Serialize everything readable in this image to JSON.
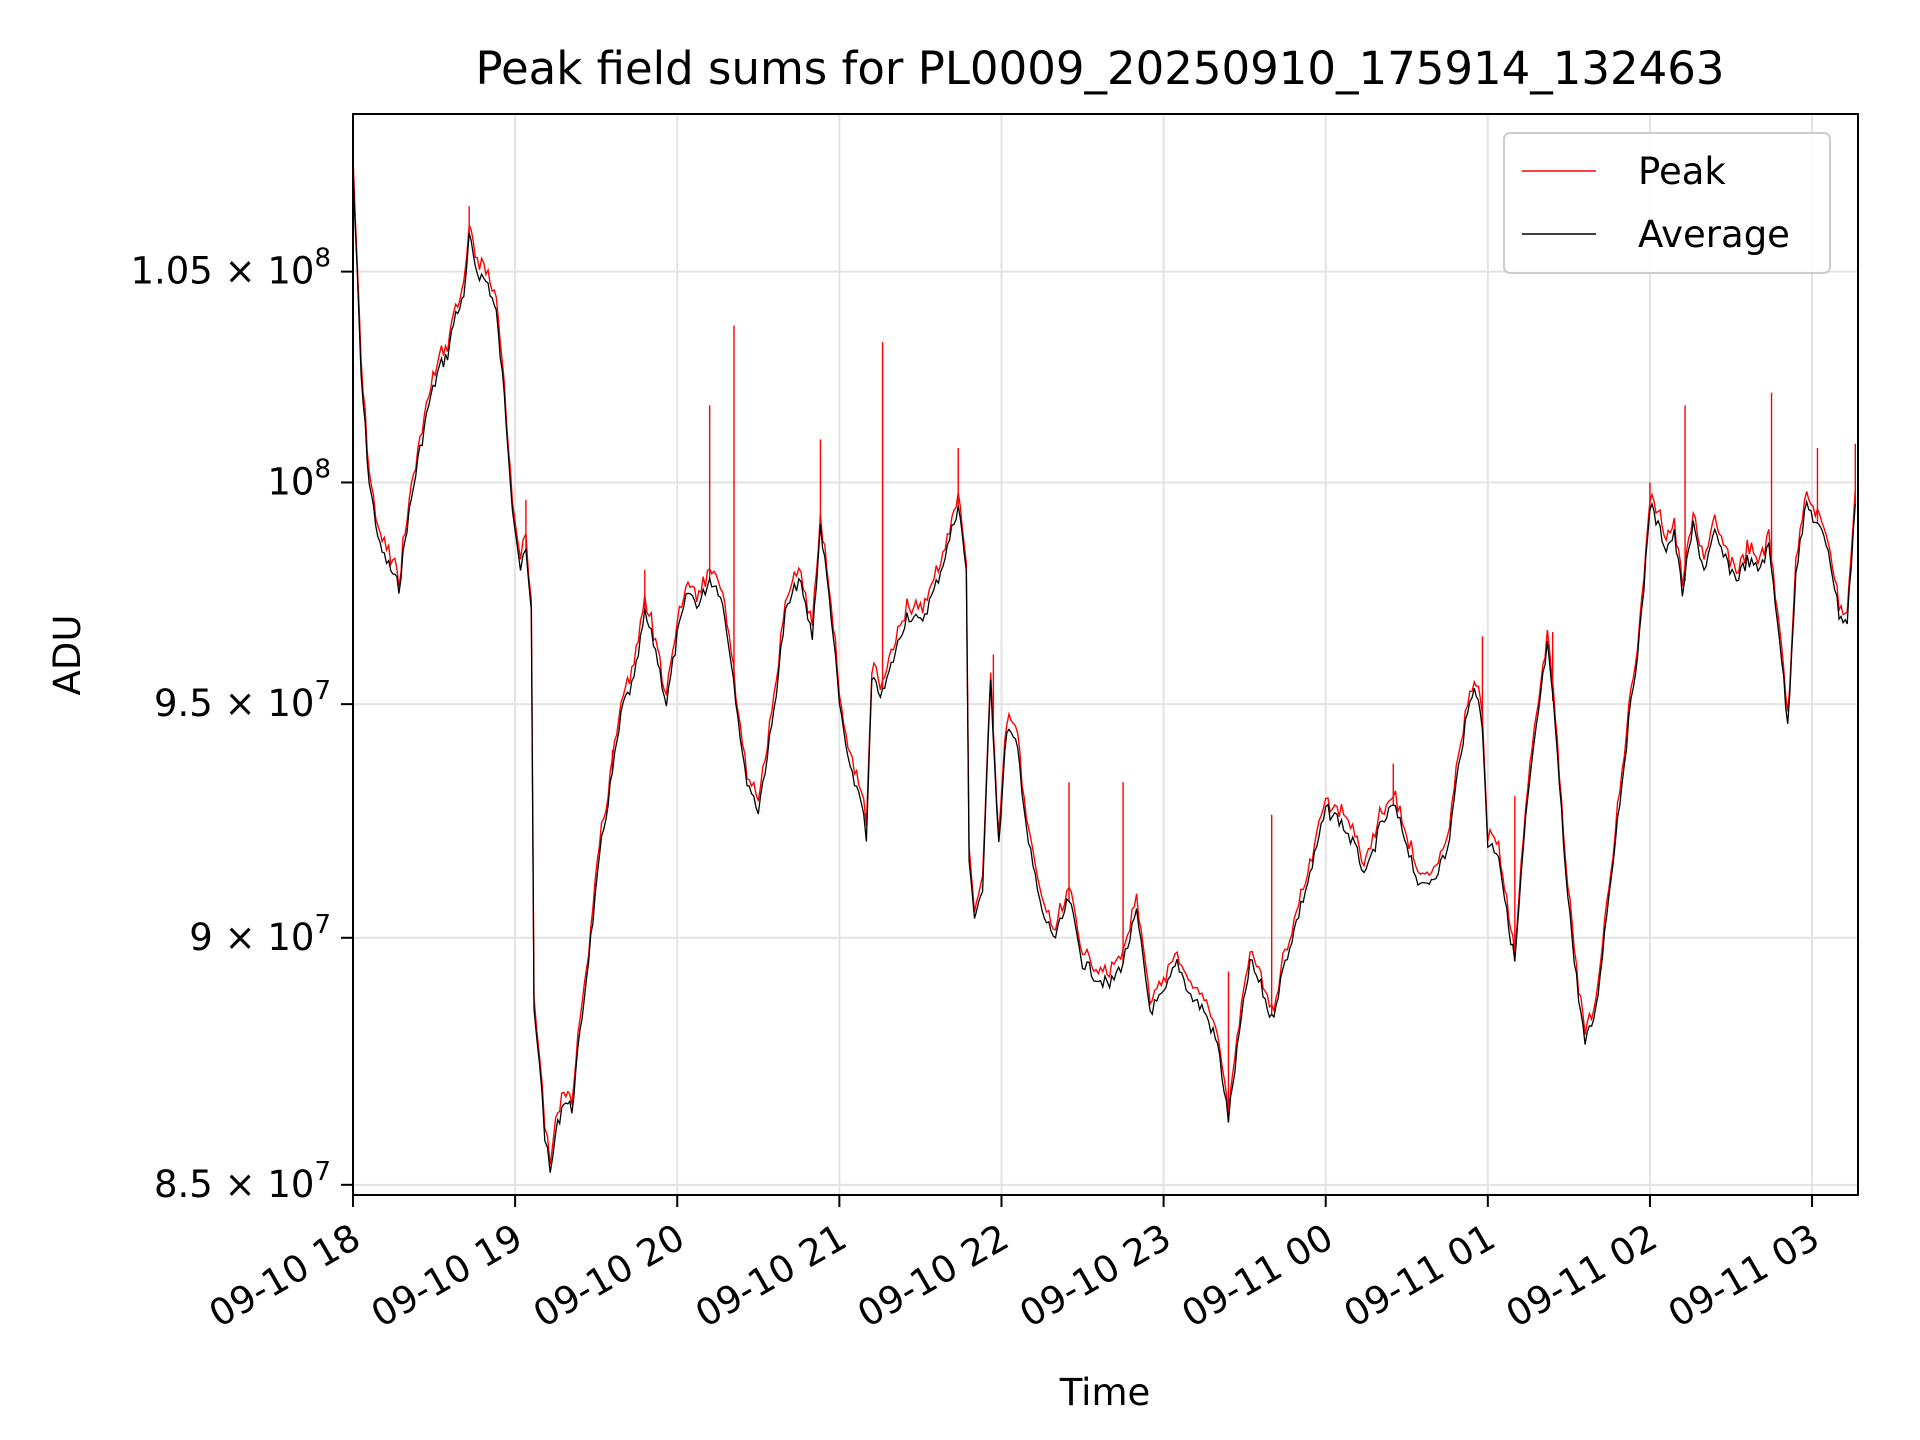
{
  "chart_data": {
    "type": "line",
    "title": "Peak field sums for PL0009_20250910_175914_132463",
    "xlabel": "Time",
    "ylabel": "ADU",
    "y_scale": "log",
    "grid": true,
    "legend_position": "top-right",
    "xlim": [
      "2025-09-10 18:00",
      "2025-09-11 03:17"
    ],
    "ylim": [
      84800000,
      108900000
    ],
    "x_ticks": [
      {
        "t": "2025-09-10 18:00",
        "label": "09-10 18"
      },
      {
        "t": "2025-09-10 19:00",
        "label": "09-10 19"
      },
      {
        "t": "2025-09-10 20:00",
        "label": "09-10 20"
      },
      {
        "t": "2025-09-10 21:00",
        "label": "09-10 21"
      },
      {
        "t": "2025-09-10 22:00",
        "label": "09-10 22"
      },
      {
        "t": "2025-09-10 23:00",
        "label": "09-10 23"
      },
      {
        "t": "2025-09-11 00:00",
        "label": "09-11 00"
      },
      {
        "t": "2025-09-11 01:00",
        "label": "09-11 01"
      },
      {
        "t": "2025-09-11 02:00",
        "label": "09-11 02"
      },
      {
        "t": "2025-09-11 03:00",
        "label": "09-11 03"
      }
    ],
    "y_ticks": [
      {
        "value": 85000000,
        "mantissa": "8.5",
        "exp": "7"
      },
      {
        "value": 90000000,
        "mantissa": "9",
        "exp": "7"
      },
      {
        "value": 95000000,
        "mantissa": "9.5",
        "exp": "7"
      },
      {
        "value": 100000000,
        "mantissa": "",
        "exp": "8"
      },
      {
        "value": 105000000,
        "mantissa": "1.05",
        "exp": "8"
      }
    ],
    "series": [
      {
        "name": "Average",
        "color": "#000000",
        "points": [
          [
            "2025-09-10 18:00",
            107500000
          ],
          [
            "2025-09-10 18:03",
            102500000
          ],
          [
            "2025-09-10 18:06",
            100000000
          ],
          [
            "2025-09-10 18:10",
            98500000
          ],
          [
            "2025-09-10 18:14",
            98000000
          ],
          [
            "2025-09-10 18:17",
            97600000
          ],
          [
            "2025-09-10 18:20",
            99000000
          ],
          [
            "2025-09-10 18:24",
            100500000
          ],
          [
            "2025-09-10 18:28",
            101800000
          ],
          [
            "2025-09-10 18:32",
            102700000
          ],
          [
            "2025-09-10 18:35",
            103000000
          ],
          [
            "2025-09-10 18:38",
            104000000
          ],
          [
            "2025-09-10 18:41",
            104300000
          ],
          [
            "2025-09-10 18:43",
            105800000
          ],
          [
            "2025-09-10 18:46",
            105000000
          ],
          [
            "2025-09-10 18:50",
            104700000
          ],
          [
            "2025-09-10 18:53",
            104000000
          ],
          [
            "2025-09-10 18:56",
            102000000
          ],
          [
            "2025-09-10 18:59",
            99500000
          ],
          [
            "2025-09-10 19:02",
            98000000
          ],
          [
            "2025-09-10 19:04",
            98400000
          ],
          [
            "2025-09-10 19:06",
            97000000
          ],
          [
            "2025-09-10 19:07",
            88500000
          ],
          [
            "2025-09-10 19:09",
            87500000
          ],
          [
            "2025-09-10 19:11",
            86000000
          ],
          [
            "2025-09-10 19:13",
            85200000
          ],
          [
            "2025-09-10 19:15",
            86000000
          ],
          [
            "2025-09-10 19:18",
            86700000
          ],
          [
            "2025-09-10 19:21",
            86500000
          ],
          [
            "2025-09-10 19:24",
            88000000
          ],
          [
            "2025-09-10 19:28",
            90000000
          ],
          [
            "2025-09-10 19:32",
            92000000
          ],
          [
            "2025-09-10 19:36",
            93500000
          ],
          [
            "2025-09-10 19:40",
            95000000
          ],
          [
            "2025-09-10 19:44",
            95500000
          ],
          [
            "2025-09-10 19:48",
            97000000
          ],
          [
            "2025-09-10 19:52",
            96200000
          ],
          [
            "2025-09-10 19:56",
            95000000
          ],
          [
            "2025-09-10 20:00",
            96500000
          ],
          [
            "2025-09-10 20:04",
            97500000
          ],
          [
            "2025-09-10 20:08",
            97200000
          ],
          [
            "2025-09-10 20:12",
            97800000
          ],
          [
            "2025-09-10 20:16",
            97500000
          ],
          [
            "2025-09-10 20:20",
            96000000
          ],
          [
            "2025-09-10 20:25",
            93500000
          ],
          [
            "2025-09-10 20:30",
            92700000
          ],
          [
            "2025-09-10 20:35",
            94500000
          ],
          [
            "2025-09-10 20:40",
            97000000
          ],
          [
            "2025-09-10 20:45",
            97800000
          ],
          [
            "2025-09-10 20:50",
            96500000
          ],
          [
            "2025-09-10 20:53",
            99000000
          ],
          [
            "2025-09-10 20:57",
            97000000
          ],
          [
            "2025-09-10 21:00",
            95000000
          ],
          [
            "2025-09-10 21:04",
            93500000
          ],
          [
            "2025-09-10 21:08",
            93000000
          ],
          [
            "2025-09-10 21:10",
            92000000
          ],
          [
            "2025-09-10 21:12",
            95500000
          ],
          [
            "2025-09-10 21:16",
            95200000
          ],
          [
            "2025-09-10 21:20",
            96000000
          ],
          [
            "2025-09-10 21:25",
            97000000
          ],
          [
            "2025-09-10 21:30",
            96800000
          ],
          [
            "2025-09-10 21:35",
            97500000
          ],
          [
            "2025-09-10 21:40",
            98500000
          ],
          [
            "2025-09-10 21:44",
            99500000
          ],
          [
            "2025-09-10 21:47",
            98000000
          ],
          [
            "2025-09-10 21:48",
            91500000
          ],
          [
            "2025-09-10 21:50",
            90500000
          ],
          [
            "2025-09-10 21:53",
            91000000
          ],
          [
            "2025-09-10 21:56",
            95500000
          ],
          [
            "2025-09-10 21:59",
            92000000
          ],
          [
            "2025-09-10 22:02",
            94500000
          ],
          [
            "2025-09-10 22:06",
            94000000
          ],
          [
            "2025-09-10 22:10",
            92000000
          ],
          [
            "2025-09-10 22:15",
            90500000
          ],
          [
            "2025-09-10 22:20",
            90000000
          ],
          [
            "2025-09-10 22:25",
            90800000
          ],
          [
            "2025-09-10 22:30",
            89500000
          ],
          [
            "2025-09-10 22:35",
            89200000
          ],
          [
            "2025-09-10 22:40",
            89000000
          ],
          [
            "2025-09-10 22:45",
            89500000
          ],
          [
            "2025-09-10 22:50",
            90500000
          ],
          [
            "2025-09-10 22:55",
            88500000
          ],
          [
            "2025-09-10 23:00",
            88800000
          ],
          [
            "2025-09-10 23:05",
            89500000
          ],
          [
            "2025-09-10 23:10",
            88800000
          ],
          [
            "2025-09-10 23:15",
            88500000
          ],
          [
            "2025-09-10 23:20",
            87800000
          ],
          [
            "2025-09-10 23:24",
            86300000
          ],
          [
            "2025-09-10 23:28",
            88000000
          ],
          [
            "2025-09-10 23:32",
            89500000
          ],
          [
            "2025-09-10 23:36",
            89000000
          ],
          [
            "2025-09-10 23:40",
            88300000
          ],
          [
            "2025-09-10 23:45",
            89500000
          ],
          [
            "2025-09-10 23:50",
            90500000
          ],
          [
            "2025-09-10 23:55",
            91500000
          ],
          [
            "2025-09-11 00:00",
            92700000
          ],
          [
            "2025-09-11 00:05",
            92500000
          ],
          [
            "2025-09-11 00:10",
            92000000
          ],
          [
            "2025-09-11 00:15",
            91300000
          ],
          [
            "2025-09-11 00:20",
            92300000
          ],
          [
            "2025-09-11 00:25",
            92800000
          ],
          [
            "2025-09-11 00:30",
            92000000
          ],
          [
            "2025-09-11 00:35",
            91000000
          ],
          [
            "2025-09-11 00:40",
            91300000
          ],
          [
            "2025-09-11 00:45",
            91800000
          ],
          [
            "2025-09-11 00:50",
            94000000
          ],
          [
            "2025-09-11 00:55",
            95500000
          ],
          [
            "2025-09-11 00:58",
            94500000
          ],
          [
            "2025-09-11 01:00",
            92000000
          ],
          [
            "2025-09-11 01:04",
            91800000
          ],
          [
            "2025-09-11 01:07",
            90500000
          ],
          [
            "2025-09-11 01:10",
            89500000
          ],
          [
            "2025-09-11 01:14",
            92500000
          ],
          [
            "2025-09-11 01:18",
            94500000
          ],
          [
            "2025-09-11 01:22",
            96300000
          ],
          [
            "2025-09-11 01:25",
            94500000
          ],
          [
            "2025-09-11 01:28",
            92000000
          ],
          [
            "2025-09-11 01:32",
            89500000
          ],
          [
            "2025-09-11 01:36",
            87800000
          ],
          [
            "2025-09-11 01:40",
            88500000
          ],
          [
            "2025-09-11 01:44",
            90500000
          ],
          [
            "2025-09-11 01:48",
            92500000
          ],
          [
            "2025-09-11 01:53",
            95000000
          ],
          [
            "2025-09-11 01:57",
            97000000
          ],
          [
            "2025-09-11 02:00",
            99500000
          ],
          [
            "2025-09-11 02:03",
            99000000
          ],
          [
            "2025-09-11 02:06",
            98500000
          ],
          [
            "2025-09-11 02:09",
            98800000
          ],
          [
            "2025-09-11 02:12",
            97500000
          ],
          [
            "2025-09-11 02:16",
            99000000
          ],
          [
            "2025-09-11 02:20",
            98000000
          ],
          [
            "2025-09-11 02:24",
            98800000
          ],
          [
            "2025-09-11 02:28",
            98200000
          ],
          [
            "2025-09-11 02:32",
            97800000
          ],
          [
            "2025-09-11 02:36",
            98200000
          ],
          [
            "2025-09-11 02:40",
            98000000
          ],
          [
            "2025-09-11 02:44",
            98500000
          ],
          [
            "2025-09-11 02:48",
            96500000
          ],
          [
            "2025-09-11 02:51",
            94500000
          ],
          [
            "2025-09-11 02:54",
            98000000
          ],
          [
            "2025-09-11 02:58",
            99500000
          ],
          [
            "2025-09-11 03:02",
            99000000
          ],
          [
            "2025-09-11 03:06",
            98500000
          ],
          [
            "2025-09-11 03:10",
            97000000
          ],
          [
            "2025-09-11 03:13",
            96800000
          ],
          [
            "2025-09-11 03:16",
            99500000
          ]
        ]
      },
      {
        "name": "Peak",
        "color": "#ff0000",
        "spikes": [
          [
            "2025-09-10 18:00",
            108800000
          ],
          [
            "2025-09-10 18:43",
            106600000
          ],
          [
            "2025-09-10 19:04",
            99600000
          ],
          [
            "2025-09-10 19:36",
            94000000
          ],
          [
            "2025-09-10 19:48",
            98000000
          ],
          [
            "2025-09-10 20:12",
            101800000
          ],
          [
            "2025-09-10 20:21",
            103700000
          ],
          [
            "2025-09-10 20:53",
            101000000
          ],
          [
            "2025-09-10 21:16",
            103300000
          ],
          [
            "2025-09-10 21:44",
            100800000
          ],
          [
            "2025-09-10 21:57",
            96100000
          ],
          [
            "2025-09-10 22:25",
            93300000
          ],
          [
            "2025-09-10 22:45",
            93300000
          ],
          [
            "2025-09-10 23:24",
            89300000
          ],
          [
            "2025-09-10 23:40",
            92600000
          ],
          [
            "2025-09-11 00:25",
            93700000
          ],
          [
            "2025-09-11 00:58",
            96500000
          ],
          [
            "2025-09-11 01:10",
            93000000
          ],
          [
            "2025-09-11 01:24",
            96600000
          ],
          [
            "2025-09-11 02:00",
            100000000
          ],
          [
            "2025-09-11 02:13",
            101800000
          ],
          [
            "2025-09-11 02:45",
            102100000
          ],
          [
            "2025-09-11 03:02",
            100800000
          ],
          [
            "2025-09-11 03:16",
            100900000
          ]
        ]
      }
    ]
  }
}
